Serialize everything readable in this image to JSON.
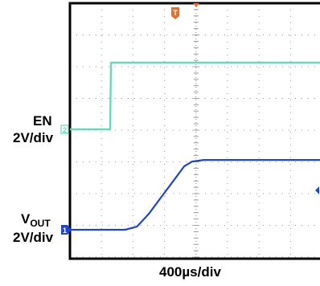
{
  "chart_data": {
    "type": "line",
    "title": "",
    "xlabel": "400µs/div",
    "x_unit": "µs",
    "x_per_div": 400,
    "xlim": [
      0,
      4000
    ],
    "grid": true,
    "series": [
      {
        "name": "EN",
        "scale_label": "2V/div",
        "channel_marker": "2",
        "color": "#66d9b8",
        "v_per_div": 2,
        "points": [
          [
            0,
            0
          ],
          [
            510,
            0
          ],
          [
            520,
            4.2
          ],
          [
            4000,
            4.2
          ]
        ]
      },
      {
        "name": "VOUT",
        "name_main": "V",
        "name_sub": "OUT",
        "scale_label": "2V/div",
        "channel_marker": "1",
        "color": "#2244cc",
        "v_per_div": 2,
        "points": [
          [
            0,
            0
          ],
          [
            700,
            0
          ],
          [
            850,
            0.2
          ],
          [
            1000,
            1.0
          ],
          [
            1150,
            2.0
          ],
          [
            1300,
            3.0
          ],
          [
            1450,
            4.0
          ],
          [
            1550,
            4.3
          ],
          [
            1700,
            4.4
          ],
          [
            4000,
            4.4
          ]
        ]
      }
    ],
    "trigger_marker": "T",
    "colors": {
      "grid": "#9a9a9a",
      "frame": "#000000",
      "trigger": "#e07030",
      "vout_offset_marker": "#2244cc"
    }
  }
}
